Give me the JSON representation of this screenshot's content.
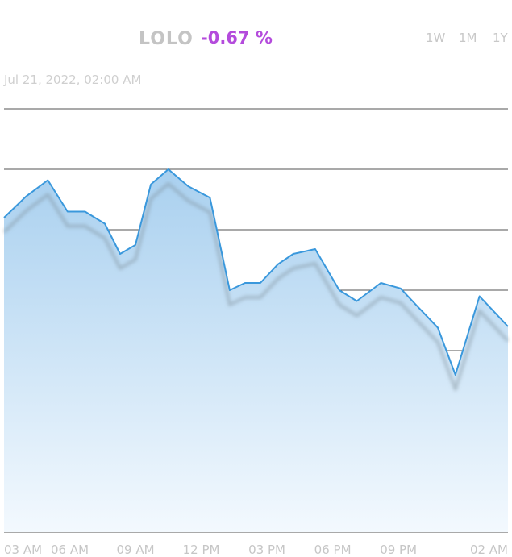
{
  "header": {
    "symbol": "LOLO",
    "change": "-0.67 %",
    "ranges": [
      "1W",
      "1M",
      "1Y"
    ]
  },
  "timestamp": "Jul 21, 2022, 02:00 AM",
  "colors": {
    "change": "#b44bdc",
    "line": "#3a98dc",
    "area_top": "#a9d0ef",
    "area_bottom": "#f3f9fe",
    "grid": "#1a1a1a",
    "muted_text": "#c6c6c6"
  },
  "chart_data": {
    "type": "area",
    "title": "",
    "xlabel": "",
    "ylabel": "",
    "x_tick_labels": [
      "03 AM",
      "06 AM",
      "09 AM",
      "12 PM",
      "03 PM",
      "06 PM",
      "09 PM",
      "02 AM"
    ],
    "y_range": [
      0,
      7
    ],
    "y_gridlines": [
      0,
      1,
      2,
      3,
      4,
      5,
      6,
      7
    ],
    "y_tick_labels_shown": false,
    "x_range": [
      0,
      23
    ],
    "x_tick_positions": [
      0,
      3,
      6,
      9,
      12,
      15,
      18,
      21.5
    ],
    "series": [
      {
        "x": [
          0,
          1,
          2,
          2.9,
          3.7,
          4.6,
          5.3,
          6,
          6.7,
          7.5,
          8.4,
          9.4,
          10.3,
          11,
          11.7,
          12.5,
          13.2,
          14.2,
          15.3,
          16.1,
          17.2,
          18.1,
          18.9,
          19.8,
          20.6,
          21.7,
          23
        ],
        "values": [
          5.2,
          5.55,
          5.82,
          5.3,
          5.3,
          5.1,
          4.6,
          4.75,
          5.75,
          6.0,
          5.72,
          5.53,
          4.0,
          4.12,
          4.12,
          4.43,
          4.6,
          4.68,
          4.0,
          3.82,
          4.12,
          4.03,
          3.72,
          3.38,
          2.6,
          3.9,
          3.4
        ],
        "shadow_offset": 0.24
      }
    ],
    "grid": true,
    "legend": "none"
  }
}
